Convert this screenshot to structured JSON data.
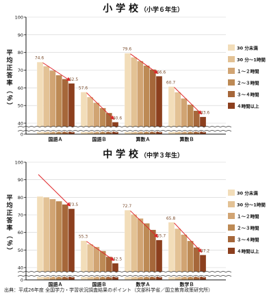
{
  "source_note": "出典：平成26年度 全国学力・学習状況調査結果のポイント（文部科学省／国立教育政策研究所）",
  "colors": {
    "bars": [
      "#f2ddb9",
      "#e3c295",
      "#d1a473",
      "#bd8a55",
      "#a6673a",
      "#8c3f1e"
    ],
    "arrow": "#e0262a",
    "axis": "#111111",
    "break_band": "#ffffff",
    "label_text": "#7a4b2b"
  },
  "chart_data": [
    {
      "type": "bar",
      "title": "小 学 校",
      "subtitle": "（小学６年生）",
      "ylabel": "平均正答率（％）",
      "ylim": [
        0,
        100
      ],
      "yticks": [
        0,
        40,
        50,
        60,
        70,
        80,
        90,
        100
      ],
      "axis_break": true,
      "categories": [
        "国語Ａ",
        "国語Ｂ",
        "算数Ａ",
        "算数Ｂ"
      ],
      "series": [
        {
          "name": "30 分未満",
          "values": [
            74.6,
            57.6,
            79.6,
            60.7
          ]
        },
        {
          "name": "30 分～1時間",
          "values": [
            72.3,
            54.8,
            77.3,
            57.5
          ]
        },
        {
          "name": "１～２時間",
          "values": [
            69.8,
            51.6,
            75.2,
            54.0
          ]
        },
        {
          "name": "２～３時間",
          "values": [
            67.2,
            48.6,
            72.6,
            50.5
          ]
        },
        {
          "name": "３～４時間",
          "values": [
            65.0,
            45.8,
            70.4,
            47.1
          ]
        },
        {
          "name": "４時間以上",
          "values": [
            62.5,
            40.6,
            66.6,
            43.6
          ]
        }
      ],
      "data_labels": [
        {
          "category": 0,
          "first": "74.6",
          "last": "62.5"
        },
        {
          "category": 1,
          "first": "57.6",
          "last": "40.6"
        },
        {
          "category": 2,
          "first": "79.6",
          "last": "66.6"
        },
        {
          "category": 3,
          "first": "60.7",
          "last": "43.6"
        }
      ],
      "legend_position": "right"
    },
    {
      "type": "bar",
      "title": "中 学 校",
      "subtitle": "（中学３年生）",
      "ylabel": "平均正答率（％）",
      "ylim": [
        0,
        100
      ],
      "yticks": [
        0,
        40,
        50,
        60,
        70,
        80,
        90,
        100
      ],
      "axis_break": true,
      "categories": [
        "国語Ａ",
        "国語Ｂ",
        "数学Ａ",
        "数学Ｂ"
      ],
      "series": [
        {
          "name": "30 分未満",
          "values": [
            80.5,
            55.3,
            72.7,
            65.8
          ]
        },
        {
          "name": "30 分～1時間",
          "values": [
            80.0,
            53.3,
            70.3,
            62.2
          ]
        },
        {
          "name": "１～２時間",
          "values": [
            79.0,
            51.8,
            68.0,
            58.8
          ]
        },
        {
          "name": "２～３時間",
          "values": [
            77.8,
            49.5,
            65.2,
            55.2
          ]
        },
        {
          "name": "３～４時間",
          "values": [
            76.0,
            46.2,
            61.5,
            51.5
          ]
        },
        {
          "name": "４時間以上",
          "values": [
            73.5,
            42.5,
            55.7,
            47.2
          ]
        }
      ],
      "data_labels": [
        {
          "category": 1,
          "first": "55.3",
          "last": "42.5"
        },
        {
          "category": 2,
          "first": "72.7",
          "last": "55.7"
        },
        {
          "category": 3,
          "first": "65.8",
          "last": "47.2"
        },
        {
          "category": 0,
          "first": "",
          "last": "73.5"
        }
      ],
      "legend_position": "right"
    }
  ]
}
